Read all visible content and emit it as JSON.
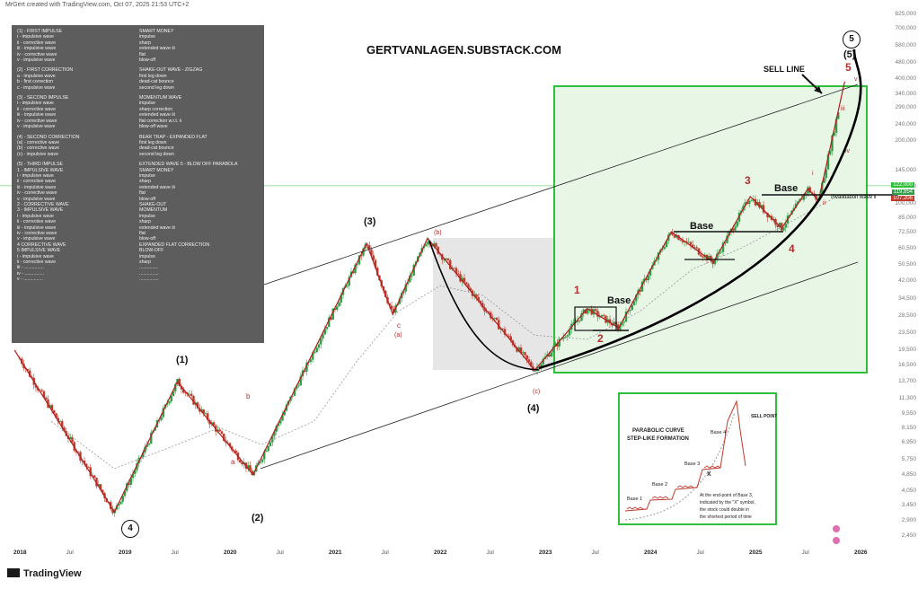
{
  "header": "MrGert created with TradingView.com, Oct 07, 2025 21:53 UTC+2",
  "brand": "TradingView",
  "site": "GERTVANLAGEN.SUBSTACK.COM",
  "colors": {
    "up": "#2e9d46",
    "down": "#c0392b",
    "box": "#2fbf3a",
    "box_fill": "#e8f6e6",
    "shade": "#dcdcdc"
  },
  "legend_rows": [
    [
      "(1) - FIRST IMPULSE",
      "SMART MONEY"
    ],
    [
      "i - impulsive wave",
      "impulse"
    ],
    [
      "ii - corrective wave",
      "sharp"
    ],
    [
      "iii - impulsive wave",
      "extended wave iii"
    ],
    [
      "iv - corrective wave",
      "flat"
    ],
    [
      "v - impulsive wave",
      "blow-off"
    ],
    [
      "",
      ""
    ],
    [
      "(2) - FIRST CORRECTION",
      "SHAKE-OUT WAVE - ZIGZAG"
    ],
    [
      "a - impulsive wave",
      "first leg down"
    ],
    [
      "b - first correction",
      "dead-cat bounce"
    ],
    [
      "c - impulsive wave",
      "second leg down"
    ],
    [
      "",
      ""
    ],
    [
      "(3) - SECOND IMPULSE",
      "MOMENTUM WAVE"
    ],
    [
      "i - impulsive wave",
      "impulse"
    ],
    [
      "ii - corrective wave",
      "sharp correction"
    ],
    [
      "iii - impulsive wave",
      "extended wave iii"
    ],
    [
      "iv - corrective wave",
      "flat correction w.r.t. ii"
    ],
    [
      "v - impulsive wave",
      "blow-off wave"
    ],
    [
      "",
      ""
    ],
    [
      "(4) - SECOND CORRECTION",
      "BEAR TRAP - EXPANDED FLAT"
    ],
    [
      "(a) - corrective wave",
      "first leg down"
    ],
    [
      "(b) - corrective wave",
      "dead-cat bounce"
    ],
    [
      "(c) - impulsive wave",
      "second leg down"
    ],
    [
      "",
      ""
    ],
    [
      "(5) - THIRD IMPULSE",
      "EXTENDED WAVE 5 - BLOW OFF PARABOLA"
    ],
    [
      "1 - IMPULSIVE WAVE",
      "SMART MONEY"
    ],
    [
      "i - impulsive wave",
      "impulse"
    ],
    [
      "ii - corrective wave",
      "sharp"
    ],
    [
      "iii - impulsive wave",
      "extended wave iii"
    ],
    [
      "iv - corrective wave",
      "flat"
    ],
    [
      "v - impulsive wave",
      "blow-off"
    ],
    [
      "2 - CORRECTIVE WAVE",
      "SHAKE-OUT"
    ],
    [
      "3 - IMPULSIVE WAVE",
      "MOMENTUM"
    ],
    [
      "i - impulsive wave",
      "impulse"
    ],
    [
      "ii - corrective wave",
      "sharp"
    ],
    [
      "iii - impulsive wave",
      "extended wave iii"
    ],
    [
      "iv - corrective wave",
      "flat"
    ],
    [
      "v - impulsive wave",
      "blow-off"
    ],
    [
      "4 CORRECTIVE WAVE",
      "EXPANDED FLAT CORRECTION"
    ],
    [
      "5 IMPULSIVE WAVE",
      "BLOW-OFF"
    ],
    [
      "i - impulsive wave",
      "impulse"
    ],
    [
      "ii - corrective wave",
      "sharp"
    ],
    [
      "iii - ...............",
      "..............."
    ],
    [
      "iv - ...............",
      "..............."
    ],
    [
      "v - ...............",
      "..............."
    ]
  ],
  "chart_data": {
    "type": "line",
    "y_scale": "log",
    "ylim": [
      2500,
      825000
    ],
    "y_ticks": [
      "825,000",
      "700,000",
      "580,000",
      "480,000",
      "400,000",
      "340,000",
      "290,000",
      "240,000",
      "200,000",
      "145,000",
      "120,000",
      "100,000",
      "85,000",
      "72,500",
      "60,500",
      "50,500",
      "42,000",
      "34,500",
      "28,500",
      "23,500",
      "19,500",
      "16,500",
      "13,700",
      "11,300",
      "9,550",
      "8,150",
      "6,950",
      "5,750",
      "4,850",
      "4,050",
      "3,450",
      "2,900",
      "2,450"
    ],
    "x_ticks": [
      {
        "label": "2018",
        "t": 2018.0,
        "year": true
      },
      {
        "label": "Jul",
        "t": 2018.5,
        "year": false
      },
      {
        "label": "2019",
        "t": 2019.0,
        "year": true
      },
      {
        "label": "Jul",
        "t": 2019.5,
        "year": false
      },
      {
        "label": "2020",
        "t": 2020.0,
        "year": true
      },
      {
        "label": "Jul",
        "t": 2020.5,
        "year": false
      },
      {
        "label": "2021",
        "t": 2021.0,
        "year": true
      },
      {
        "label": "Jul",
        "t": 2021.5,
        "year": false
      },
      {
        "label": "2022",
        "t": 2022.0,
        "year": true
      },
      {
        "label": "Jul",
        "t": 2022.5,
        "year": false
      },
      {
        "label": "2023",
        "t": 2023.0,
        "year": true
      },
      {
        "label": "Jul",
        "t": 2023.5,
        "year": false
      },
      {
        "label": "2024",
        "t": 2024.0,
        "year": true
      },
      {
        "label": "Jul",
        "t": 2024.5,
        "year": false
      },
      {
        "label": "2025",
        "t": 2025.0,
        "year": true
      },
      {
        "label": "Jul",
        "t": 2025.5,
        "year": false
      },
      {
        "label": "2026",
        "t": 2026.0,
        "year": true
      }
    ],
    "wave_path": [
      {
        "t": 2017.95,
        "v": 19500
      },
      {
        "t": 2018.9,
        "v": 3200
      },
      {
        "t": 2019.5,
        "v": 13700
      },
      {
        "t": 2020.22,
        "v": 4850
      },
      {
        "t": 2021.3,
        "v": 64000
      },
      {
        "t": 2021.55,
        "v": 29000
      },
      {
        "t": 2021.88,
        "v": 68000
      },
      {
        "t": 2022.9,
        "v": 15600
      },
      {
        "t": 2023.4,
        "v": 31000
      },
      {
        "t": 2023.7,
        "v": 25000
      },
      {
        "t": 2024.2,
        "v": 73000
      },
      {
        "t": 2024.6,
        "v": 52000
      },
      {
        "t": 2024.95,
        "v": 108000
      },
      {
        "t": 2025.25,
        "v": 76000
      },
      {
        "t": 2025.5,
        "v": 118000
      },
      {
        "t": 2025.6,
        "v": 103000
      },
      {
        "t": 2025.85,
        "v": 390000
      }
    ],
    "price_tags": [
      {
        "text": "122,000",
        "v": 122000,
        "color": "#2fbf3a"
      },
      {
        "text": "119,854",
        "v": 112000,
        "color": "#2e9d46"
      },
      {
        "text": "107,206",
        "v": 105000,
        "color": "#c0392b"
      }
    ],
    "annotations": {
      "sell_line": "SELL LINE",
      "base1": "Base",
      "base2": "Base",
      "base3": "Base",
      "invalidation": "Invalidation wave ii",
      "w1": "(1)",
      "w2": "(2)",
      "w3": "(3)",
      "w4": "(4)",
      "w5": "(5)",
      "w5_circle": "5",
      "w4_circle": "4",
      "m1": "1",
      "m2": "2",
      "m3": "3",
      "m4": "4",
      "m5": "5",
      "a": "a",
      "b": "b",
      "c": "c",
      "pa": "(a)",
      "pb": "(b)",
      "pc": "(c)",
      "ri": "i",
      "rii": "ii",
      "riii": "iii",
      "riv": "iv",
      "rv": "v"
    }
  },
  "inset": {
    "title1": "PARABOLIC CURVE",
    "title2": "STEP-LIKE FORMATION",
    "base1": "Base 1",
    "base2": "Base 2",
    "base3": "Base 3",
    "base4": "Base 4",
    "sell_point": "SELL POINT",
    "x_mark": "X",
    "note1": "At the end-point of Base 3,",
    "note2": "indicated by the \"X\" symbol,",
    "note3": "the stock could double in",
    "note4": "the shortest period of time"
  }
}
